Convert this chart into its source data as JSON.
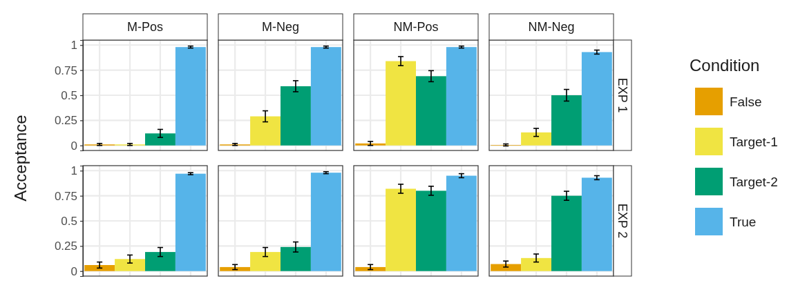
{
  "chart_data": [
    {
      "type": "bar",
      "ylabel": "Acceptance",
      "categories": [
        "M-Pos",
        "M-Neg",
        "NM-Pos",
        "NM-Neg"
      ],
      "ylim": [
        -0.05,
        1.05
      ],
      "yticks": [
        0,
        0.25,
        0.5,
        0.75,
        1
      ],
      "grid": true,
      "legend": "right",
      "legend_title": "Condition",
      "annotations": [
        "EXP 1"
      ],
      "series": [
        {
          "name": "False",
          "color": "#e69f00",
          "values": [
            0.01,
            0.01,
            0.02,
            0.005
          ],
          "errors": [
            0.01,
            0.01,
            0.02,
            0.01
          ]
        },
        {
          "name": "Target-1",
          "color": "#f0e442",
          "values": [
            0.01,
            0.29,
            0.84,
            0.13
          ],
          "errors": [
            0.01,
            0.055,
            0.045,
            0.04
          ]
        },
        {
          "name": "Target-2",
          "color": "#009e73",
          "values": [
            0.12,
            0.59,
            0.69,
            0.5
          ],
          "errors": [
            0.04,
            0.055,
            0.055,
            0.058
          ]
        },
        {
          "name": "True",
          "color": "#56b4e9",
          "values": [
            0.98,
            0.98,
            0.98,
            0.93
          ],
          "errors": [
            0.01,
            0.01,
            0.01,
            0.02
          ]
        }
      ]
    },
    {
      "type": "bar",
      "categories": [
        null,
        null,
        null,
        null
      ],
      "ylim": [
        -0.05,
        1.05
      ],
      "yticks": [
        0,
        0.25,
        0.5,
        0.75,
        1
      ],
      "grid": true,
      "tick_labels": "y",
      "annotations": [
        "EXP 2"
      ],
      "series": [
        {
          "color": "#e69f00",
          "values": [
            0.06,
            0.04,
            0.04,
            0.07
          ],
          "errors": [
            0.03,
            0.025,
            0.025,
            0.03
          ]
        },
        {
          "color": "#f0e442",
          "values": [
            0.12,
            0.19,
            0.82,
            0.13
          ],
          "errors": [
            0.04,
            0.045,
            0.045,
            0.04
          ]
        },
        {
          "color": "#009e73",
          "values": [
            0.19,
            0.24,
            0.8,
            0.75
          ],
          "errors": [
            0.045,
            0.05,
            0.045,
            0.045
          ]
        },
        {
          "color": "#56b4e9",
          "values": [
            0.97,
            0.98,
            0.95,
            0.93
          ],
          "errors": [
            0.01,
            0.01,
            0.02,
            0.02
          ]
        }
      ]
    }
  ]
}
